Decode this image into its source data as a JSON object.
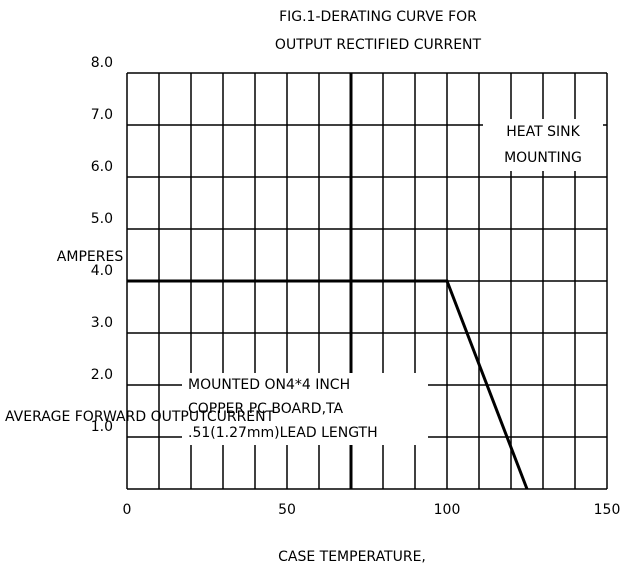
{
  "chart_data": {
    "type": "line",
    "title": [
      "FIG.1-DERATING CURVE FOR",
      "OUTPUT RECTIFIED CURRENT"
    ],
    "xlabel": "CASE TEMPERATURE,",
    "ylabel": [
      "AMPERES",
      "AVERAGE FORWARD OUTPUTCURRENT"
    ],
    "x": [
      0,
      100,
      125
    ],
    "values": [
      4,
      4,
      0
    ],
    "color": "#000000",
    "xlim": [
      0,
      150
    ],
    "xticks": [
      0,
      50,
      100,
      150
    ],
    "xgrid": [
      0,
      10,
      20,
      30,
      40,
      50,
      60,
      70,
      80,
      90,
      100,
      110,
      120,
      130,
      140,
      150
    ],
    "ylim": [
      0,
      8
    ],
    "yticks": [
      {
        "value": 1,
        "label": "1.0"
      },
      {
        "value": 2,
        "label": "2.0"
      },
      {
        "value": 3,
        "label": "3.0"
      },
      {
        "value": 4,
        "label": "4.0"
      },
      {
        "value": 5,
        "label": "5.0"
      },
      {
        "value": 6,
        "label": "6.0"
      },
      {
        "value": 7,
        "label": "7.0"
      },
      {
        "value": 8,
        "label": "8.0"
      }
    ],
    "grid": true,
    "reference_lines": [
      {
        "x": 70
      }
    ],
    "annotations": [
      [
        "HEAT SINK",
        "MOUNTING"
      ],
      [
        "MOUNTED ON4*4 INCH",
        "COPPER PC BOARD,TA",
        ".51(1.27mm)LEAD LENGTH"
      ]
    ]
  }
}
